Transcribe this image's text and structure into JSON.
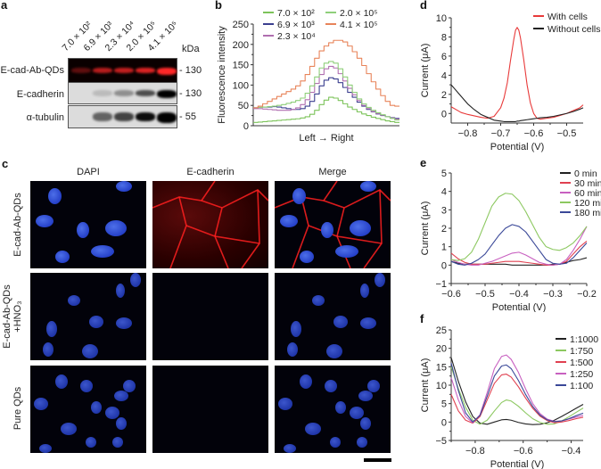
{
  "panels": {
    "a": {
      "label": "a",
      "lanes": [
        "7.0 × 10²",
        "6.9 × 10³",
        "2.3 × 10⁴",
        "2.0 × 10⁵",
        "4.1 × 10⁵"
      ],
      "kda_label": "kDa",
      "rows": [
        {
          "name": "E-cad-Ab-QDs",
          "kda": "- 130"
        },
        {
          "name": "E-cadherin",
          "kda": "- 130"
        },
        {
          "name": "α-tubulin",
          "kda": "- 55"
        }
      ]
    },
    "b": {
      "label": "b"
    },
    "c": {
      "label": "c",
      "columns": [
        "DAPI",
        "E-cadherin",
        "Merge"
      ],
      "rows": [
        "E-cad-Ab-QDs",
        "E-cad-Ab-QDs +HNO₃",
        "Pure QDs"
      ],
      "row2_line1": "E-cad-Ab-QDs",
      "row2_line2": "+HNO₃"
    },
    "d": {
      "label": "d"
    },
    "e": {
      "label": "e"
    },
    "f": {
      "label": "f"
    }
  },
  "chart_data": [
    {
      "id": "b",
      "type": "line",
      "title": "",
      "xlabel": "Left → Right",
      "ylabel": "Fluorescence intensity",
      "ylim": [
        0,
        250
      ],
      "yticks": [
        0,
        50,
        100,
        150,
        200,
        250
      ],
      "legend_position": "top",
      "x": [
        0,
        1,
        2,
        3,
        4,
        5,
        6,
        7,
        8,
        9,
        10,
        11,
        12,
        13,
        14,
        15,
        16,
        17,
        18,
        19,
        20,
        21,
        22,
        23,
        24,
        25,
        26,
        27,
        28,
        29,
        30
      ],
      "series": [
        {
          "name": "7.0 × 10²",
          "color": "#7cc35a",
          "values": [
            8,
            9,
            10,
            11,
            12,
            13,
            14,
            15,
            16,
            17,
            19,
            22,
            28,
            38,
            52,
            63,
            70,
            68,
            62,
            54,
            46,
            40,
            34,
            29,
            25,
            21,
            18,
            15,
            12,
            10,
            8
          ]
        },
        {
          "name": "6.9 × 10³",
          "color": "#3b3f8f",
          "values": [
            44,
            45,
            46,
            46,
            47,
            46,
            44,
            42,
            40,
            40,
            42,
            48,
            60,
            78,
            98,
            112,
            118,
            115,
            106,
            94,
            82,
            70,
            58,
            48,
            40,
            34,
            29,
            25,
            22,
            20,
            18
          ]
        },
        {
          "name": "2.3 × 10⁴",
          "color": "#b06fb0",
          "values": [
            42,
            42,
            41,
            40,
            39,
            38,
            38,
            38,
            40,
            44,
            52,
            64,
            82,
            104,
            126,
            140,
            146,
            142,
            128,
            110,
            92,
            76,
            62,
            50,
            42,
            35,
            30,
            26,
            22,
            19,
            16
          ]
        },
        {
          "name": "2.0 × 10⁵",
          "color": "#8fcf7a",
          "values": [
            44,
            45,
            46,
            47,
            48,
            50,
            52,
            55,
            58,
            62,
            68,
            80,
            98,
            120,
            142,
            154,
            158,
            154,
            140,
            120,
            100,
            82,
            66,
            54,
            45,
            38,
            32,
            27,
            22,
            18,
            14
          ]
        },
        {
          "name": "4.1 × 10⁵",
          "color": "#e8845a",
          "values": [
            44,
            48,
            54,
            60,
            66,
            72,
            78,
            84,
            90,
            98,
            110,
            126,
            146,
            166,
            184,
            196,
            204,
            210,
            210,
            206,
            196,
            182,
            166,
            148,
            128,
            108,
            90,
            74,
            60,
            50,
            48
          ]
        }
      ]
    },
    {
      "id": "d",
      "type": "line",
      "xlabel": "Potential (V)",
      "ylabel": "Current (μA)",
      "xlim": [
        -0.85,
        -0.45
      ],
      "ylim": [
        -1,
        10
      ],
      "xticks": [
        -0.8,
        -0.7,
        -0.6,
        -0.5
      ],
      "yticks": [
        0,
        2,
        4,
        6,
        8,
        10
      ],
      "legend_position": "upper right",
      "x": [
        -0.85,
        -0.82,
        -0.8,
        -0.78,
        -0.76,
        -0.74,
        -0.72,
        -0.7,
        -0.69,
        -0.68,
        -0.67,
        -0.66,
        -0.655,
        -0.65,
        -0.645,
        -0.64,
        -0.63,
        -0.62,
        -0.61,
        -0.6,
        -0.59,
        -0.58,
        -0.56,
        -0.54,
        -0.52,
        -0.5,
        -0.48,
        -0.46,
        -0.45
      ],
      "series": [
        {
          "name": "With cells",
          "color": "#e83a3a",
          "values": [
            0.7,
            0.1,
            -0.1,
            -0.25,
            -0.4,
            -0.5,
            -0.3,
            0.6,
            1.6,
            3.2,
            5.6,
            7.8,
            8.7,
            9.0,
            8.7,
            7.9,
            5.6,
            3.0,
            1.1,
            0.0,
            -0.5,
            -0.6,
            -0.5,
            -0.4,
            -0.2,
            0.0,
            0.3,
            0.6,
            0.9
          ]
        },
        {
          "name": "Without cells",
          "color": "#222222",
          "values": [
            3.0,
            1.8,
            1.0,
            0.4,
            -0.1,
            -0.4,
            -0.7,
            -0.8,
            -0.85,
            -0.85,
            -0.85,
            -0.85,
            -0.85,
            -0.8,
            -0.8,
            -0.75,
            -0.7,
            -0.65,
            -0.6,
            -0.55,
            -0.5,
            -0.45,
            -0.4,
            -0.3,
            -0.15,
            0.0,
            0.2,
            0.45,
            0.6
          ]
        }
      ]
    },
    {
      "id": "e",
      "type": "line",
      "xlabel": "Potential (V)",
      "ylabel": "Current (μA)",
      "xlim": [
        -0.6,
        -0.2
      ],
      "ylim": [
        -1,
        5
      ],
      "xticks": [
        -0.6,
        -0.5,
        -0.4,
        -0.3,
        -0.2
      ],
      "yticks": [
        -1,
        0,
        1,
        2,
        3,
        4,
        5
      ],
      "legend_position": "upper right",
      "x": [
        -0.6,
        -0.58,
        -0.56,
        -0.54,
        -0.52,
        -0.5,
        -0.48,
        -0.46,
        -0.44,
        -0.42,
        -0.4,
        -0.38,
        -0.36,
        -0.34,
        -0.32,
        -0.3,
        -0.28,
        -0.26,
        -0.24,
        -0.22,
        -0.2
      ],
      "series": [
        {
          "name": "0 min",
          "color": "#222222",
          "values": [
            0.2,
            0.1,
            0.05,
            0.05,
            0.05,
            0.05,
            0.05,
            0.05,
            0.05,
            0.0,
            0.0,
            0.0,
            0.0,
            0.0,
            0.0,
            0.05,
            0.05,
            0.15,
            0.25,
            0.3,
            0.4
          ]
        },
        {
          "name": "30 min",
          "color": "#e04050",
          "values": [
            0.65,
            0.35,
            0.15,
            0.05,
            0.05,
            0.05,
            0.1,
            0.15,
            0.2,
            0.2,
            0.2,
            0.15,
            0.1,
            0.05,
            0.0,
            0.0,
            0.05,
            0.2,
            0.6,
            1.0,
            1.3
          ]
        },
        {
          "name": "60 min",
          "color": "#c860c0",
          "values": [
            0.3,
            0.15,
            0.05,
            0.0,
            0.0,
            0.1,
            0.2,
            0.35,
            0.5,
            0.65,
            0.7,
            0.55,
            0.35,
            0.15,
            0.05,
            0.0,
            0.05,
            0.3,
            0.8,
            1.4,
            2.1
          ]
        },
        {
          "name": "120 min",
          "color": "#8cc860",
          "values": [
            0.3,
            0.25,
            0.35,
            0.7,
            1.4,
            2.3,
            3.2,
            3.7,
            3.9,
            3.85,
            3.5,
            2.9,
            2.2,
            1.5,
            1.0,
            0.85,
            0.8,
            0.95,
            1.2,
            1.6,
            2.1
          ]
        },
        {
          "name": "180 min",
          "color": "#3a4898",
          "values": [
            0.2,
            0.05,
            0.0,
            0.1,
            0.3,
            0.6,
            1.1,
            1.6,
            2.0,
            2.2,
            2.1,
            1.8,
            1.3,
            0.8,
            0.3,
            0.1,
            0.05,
            0.1,
            0.4,
            0.8,
            1.2
          ]
        }
      ]
    },
    {
      "id": "f",
      "type": "line",
      "xlabel": "Potential (V)",
      "ylabel": "Current (μA)",
      "xlim": [
        -0.9,
        -0.35
      ],
      "ylim": [
        -5,
        25
      ],
      "xticks": [
        -0.8,
        -0.6,
        -0.4
      ],
      "yticks": [
        -5,
        0,
        5,
        10,
        15,
        20,
        25
      ],
      "legend_position": "right",
      "x": [
        -0.9,
        -0.87,
        -0.84,
        -0.81,
        -0.78,
        -0.75,
        -0.72,
        -0.69,
        -0.67,
        -0.65,
        -0.62,
        -0.59,
        -0.56,
        -0.53,
        -0.5,
        -0.47,
        -0.44,
        -0.41,
        -0.38,
        -0.35
      ],
      "series": [
        {
          "name": "1:1000",
          "color": "#222222",
          "values": [
            17.5,
            11,
            5.5,
            1.5,
            -0.3,
            -0.6,
            0.0,
            0.6,
            0.7,
            0.5,
            -0.1,
            -0.5,
            -0.7,
            -0.6,
            -0.2,
            0.5,
            1.5,
            2.6,
            3.7,
            4.8
          ]
        },
        {
          "name": "1:750",
          "color": "#8cc860",
          "values": [
            15,
            9,
            4,
            0.5,
            -0.6,
            0.5,
            3.0,
            5.3,
            6.0,
            5.7,
            4.3,
            2.5,
            0.9,
            -0.1,
            -0.6,
            -0.5,
            0.3,
            1.4,
            2.6,
            3.8
          ]
        },
        {
          "name": "1:500",
          "color": "#e04050",
          "values": [
            7.5,
            3,
            0.5,
            -0.3,
            1.5,
            6.0,
            10.5,
            12.8,
            13.0,
            12.2,
            9.6,
            6.5,
            3.7,
            1.6,
            0.4,
            -0.2,
            0.0,
            0.4,
            0.9,
            1.3
          ]
        },
        {
          "name": "1:250",
          "color": "#c860c0",
          "values": [
            12,
            6,
            1.5,
            -0.2,
            2.0,
            8.0,
            14.5,
            17.8,
            18.2,
            17.0,
            13.5,
            9.0,
            5.0,
            2.3,
            0.8,
            0.2,
            0.3,
            0.8,
            1.3,
            1.8
          ]
        },
        {
          "name": "1:100",
          "color": "#3a4898",
          "values": [
            16,
            8.5,
            2.5,
            0.0,
            1.8,
            7.0,
            12.5,
            15.2,
            15.5,
            14.5,
            11.3,
            7.5,
            4.2,
            1.9,
            0.6,
            0.1,
            0.3,
            0.9,
            1.7,
            2.4
          ]
        }
      ]
    }
  ]
}
